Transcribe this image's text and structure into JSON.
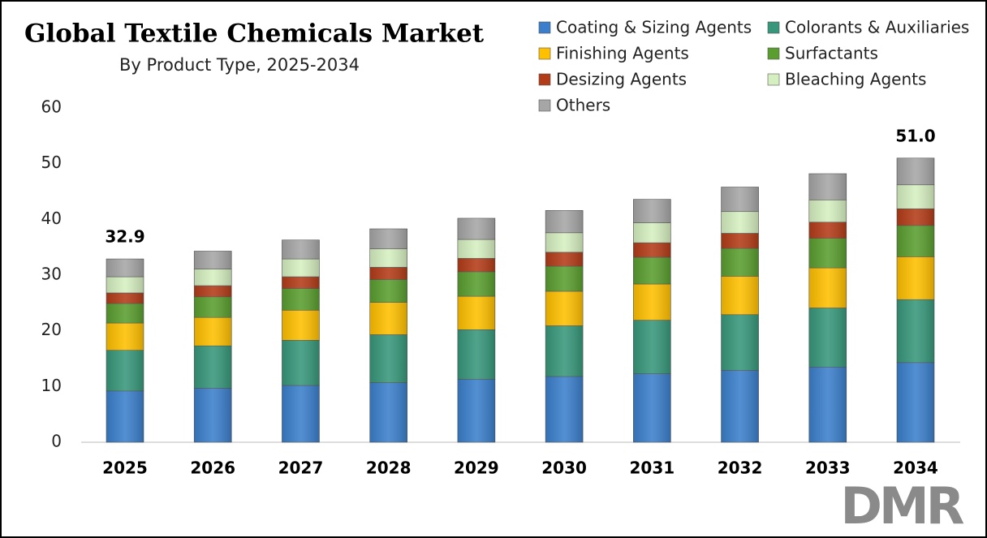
{
  "chart_data": {
    "type": "stacked-bar",
    "title": "Global Textile Chemicals Market",
    "subtitle": "By Product Type, 2025-2034",
    "categories": [
      "2025",
      "2026",
      "2027",
      "2028",
      "2029",
      "2030",
      "2031",
      "2032",
      "2033",
      "2034"
    ],
    "series": [
      {
        "name": "Coating & Sizing Agents",
        "color": "#3b7fcc",
        "values": [
          9.2,
          9.7,
          10.2,
          10.7,
          11.3,
          11.8,
          12.3,
          12.9,
          13.5,
          14.3
        ]
      },
      {
        "name": "Colorants & Auxiliaries",
        "color": "#37977a",
        "values": [
          7.3,
          7.6,
          8.1,
          8.6,
          8.9,
          9.1,
          9.6,
          10.0,
          10.6,
          11.3
        ]
      },
      {
        "name": "Finishing Agents",
        "color": "#ffc000",
        "values": [
          4.9,
          5.1,
          5.4,
          5.8,
          6.0,
          6.2,
          6.5,
          6.9,
          7.2,
          7.7
        ]
      },
      {
        "name": "Surfactants",
        "color": "#5a9e2f",
        "values": [
          3.5,
          3.7,
          3.9,
          4.1,
          4.4,
          4.5,
          4.8,
          5.0,
          5.3,
          5.6
        ]
      },
      {
        "name": "Desizing Agents",
        "color": "#b33c18",
        "values": [
          1.9,
          2.0,
          2.1,
          2.2,
          2.4,
          2.5,
          2.6,
          2.7,
          2.9,
          3.0
        ]
      },
      {
        "name": "Bleaching Agents",
        "color": "#d6efc0",
        "values": [
          2.9,
          3.0,
          3.2,
          3.3,
          3.4,
          3.5,
          3.6,
          3.9,
          4.0,
          4.3
        ]
      },
      {
        "name": "Others",
        "color": "#a6a6a6",
        "values": [
          3.2,
          3.2,
          3.4,
          3.6,
          3.8,
          4.0,
          4.2,
          4.4,
          4.7,
          4.8
        ]
      }
    ],
    "annotations": [
      {
        "x": "2025",
        "text": "32.9"
      },
      {
        "x": "2034",
        "text": "51.0"
      }
    ],
    "ylim": [
      0,
      60
    ],
    "yticks": [
      0,
      10,
      20,
      30,
      40,
      50,
      60
    ],
    "grid": false,
    "legend": "top-right"
  },
  "logo": "DMR"
}
